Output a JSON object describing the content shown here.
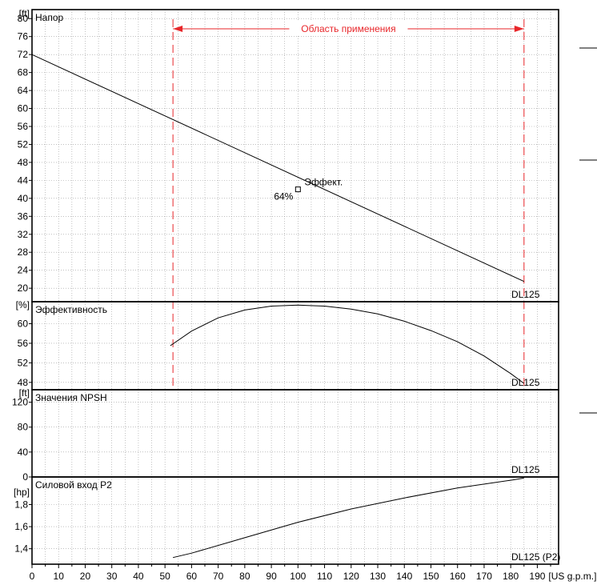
{
  "chart_data": {
    "type": "line",
    "x_axis": {
      "range": [
        0,
        198
      ],
      "unit": "[US g.p.m.]",
      "ticks": [
        0,
        10,
        20,
        30,
        40,
        50,
        60,
        70,
        80,
        90,
        100,
        110,
        120,
        130,
        140,
        150,
        160,
        170,
        180,
        190
      ]
    },
    "application_range": {
      "label": "Область применения",
      "x": [
        53,
        185
      ],
      "color": "#e8262a"
    },
    "panels": [
      {
        "key": "head",
        "title": "Напор",
        "unit": "[ft]",
        "ylim": [
          17,
          82
        ],
        "yticks": [
          20,
          24,
          28,
          32,
          36,
          40,
          44,
          48,
          52,
          56,
          60,
          64,
          68,
          72,
          76,
          80
        ],
        "series": [
          {
            "name": "DL125",
            "x": [
              0,
              185
            ],
            "y": [
              72,
              21.5
            ]
          }
        ],
        "marker": {
          "x": 100,
          "y": 42,
          "label": "Эффект.",
          "value": "64%"
        }
      },
      {
        "key": "efficiency",
        "title": "Эффективность",
        "unit": "[%]",
        "ylim": [
          46.5,
          64.5
        ],
        "yticks": [
          48,
          52,
          56,
          60
        ],
        "series": [
          {
            "name": "DL125",
            "x": [
              52,
              60,
              70,
              80,
              90,
              100,
              110,
              120,
              130,
              140,
              150,
              160,
              170,
              180,
              185
            ],
            "y": [
              55.5,
              58.5,
              61.2,
              62.8,
              63.6,
              63.8,
              63.6,
              63.0,
              62.0,
              60.5,
              58.6,
              56.3,
              53.4,
              49.8,
              47.8
            ]
          }
        ]
      },
      {
        "key": "npsh",
        "title": "Значения NPSH",
        "unit": "[ft]",
        "ylim": [
          0,
          140
        ],
        "yticks": [
          0,
          40,
          80,
          120
        ],
        "series": [
          {
            "name": "DL125",
            "x": [],
            "y": []
          }
        ]
      },
      {
        "key": "power",
        "title": "Силовой вход P2",
        "unit": "[hp]",
        "ylim": [
          1.26,
          2.05
        ],
        "yticks": [
          1.4,
          1.6,
          1.8
        ],
        "tick_labels": [
          "1,4",
          "1,6",
          "1,8"
        ],
        "series": [
          {
            "name": "DL125 (P2)",
            "x": [
              53,
              60,
              80,
              100,
              120,
              140,
              160,
              180,
              185
            ],
            "y": [
              1.32,
              1.36,
              1.5,
              1.64,
              1.76,
              1.86,
              1.95,
              2.02,
              2.04
            ]
          }
        ]
      }
    ],
    "grid": true
  }
}
